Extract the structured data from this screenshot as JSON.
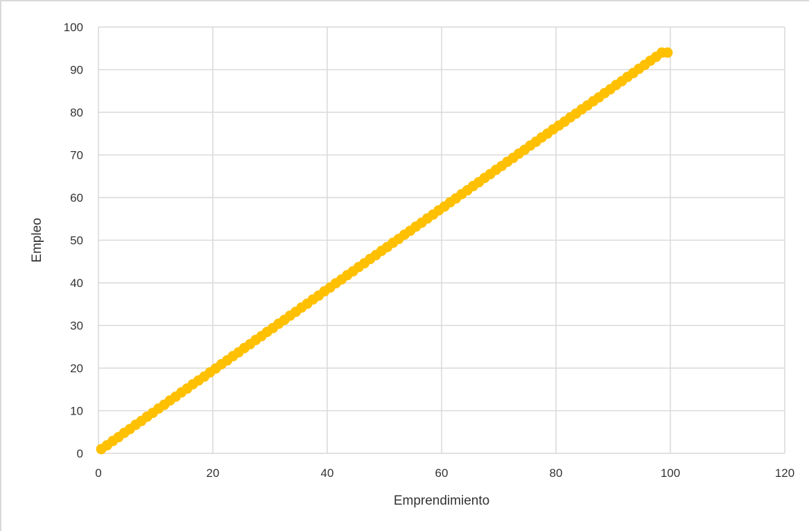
{
  "chart_data": {
    "type": "scatter",
    "title": "",
    "xlabel": "Emprendimiento",
    "ylabel": "Empleo",
    "xlim": [
      0,
      120
    ],
    "ylim": [
      0,
      100
    ],
    "x_ticks": [
      0,
      20,
      40,
      60,
      80,
      100,
      120
    ],
    "y_ticks": [
      0,
      10,
      20,
      30,
      40,
      50,
      60,
      70,
      80,
      90,
      100
    ],
    "grid": true,
    "legend": "none",
    "marker_color": "#ffc000",
    "series": [
      {
        "x": [
          0.5,
          1.5,
          2.5,
          3.5,
          4.5,
          5.5,
          6.5,
          7.5,
          8.5,
          9.5,
          10.5,
          11.5,
          12.5,
          13.5,
          14.5,
          15.5,
          16.5,
          17.5,
          18.5,
          19.5,
          20.5,
          21.5,
          22.5,
          23.5,
          24.5,
          25.5,
          26.5,
          27.5,
          28.5,
          29.5,
          30.5,
          31.5,
          32.5,
          33.5,
          34.5,
          35.5,
          36.5,
          37.5,
          38.5,
          39.5,
          40.5,
          41.5,
          42.5,
          43.5,
          44.5,
          45.5,
          46.5,
          47.5,
          48.5,
          49.5,
          50.5,
          51.5,
          52.5,
          53.5,
          54.5,
          55.5,
          56.5,
          57.5,
          58.5,
          59.5,
          60.5,
          61.5,
          62.5,
          63.5,
          64.5,
          65.5,
          66.5,
          67.5,
          68.5,
          69.5,
          70.5,
          71.5,
          72.5,
          73.5,
          74.5,
          75.5,
          76.5,
          77.5,
          78.5,
          79.5,
          80.5,
          81.5,
          82.5,
          83.5,
          84.5,
          85.5,
          86.5,
          87.5,
          88.5,
          89.5,
          90.5,
          91.5,
          92.5,
          93.5,
          94.5,
          95.5,
          96.5,
          97.5,
          98.5,
          99.5
        ],
        "y": [
          1.0,
          1.9,
          2.9,
          3.8,
          4.8,
          5.7,
          6.7,
          7.6,
          8.6,
          9.5,
          10.5,
          11.4,
          12.4,
          13.3,
          14.3,
          15.2,
          16.2,
          17.1,
          18.0,
          19.0,
          19.9,
          20.9,
          21.8,
          22.8,
          23.7,
          24.7,
          25.6,
          26.6,
          27.5,
          28.5,
          29.4,
          30.4,
          31.3,
          32.3,
          33.2,
          34.2,
          35.1,
          36.1,
          37.0,
          38.0,
          38.9,
          39.9,
          40.8,
          41.8,
          42.7,
          43.7,
          44.6,
          45.6,
          46.5,
          47.5,
          48.4,
          49.4,
          50.3,
          51.3,
          52.2,
          53.2,
          54.1,
          55.1,
          56.0,
          57.0,
          57.9,
          58.9,
          59.8,
          60.8,
          61.7,
          62.7,
          63.6,
          64.6,
          65.5,
          66.5,
          67.4,
          68.4,
          69.3,
          70.3,
          71.2,
          72.2,
          73.1,
          74.1,
          75.0,
          76.0,
          76.9,
          77.8,
          78.8,
          79.7,
          80.7,
          81.6,
          82.6,
          83.5,
          84.5,
          85.4,
          86.4,
          87.3,
          88.3,
          89.2,
          90.2,
          91.1,
          92.1,
          93.0,
          94.0,
          94.0
        ]
      }
    ]
  }
}
